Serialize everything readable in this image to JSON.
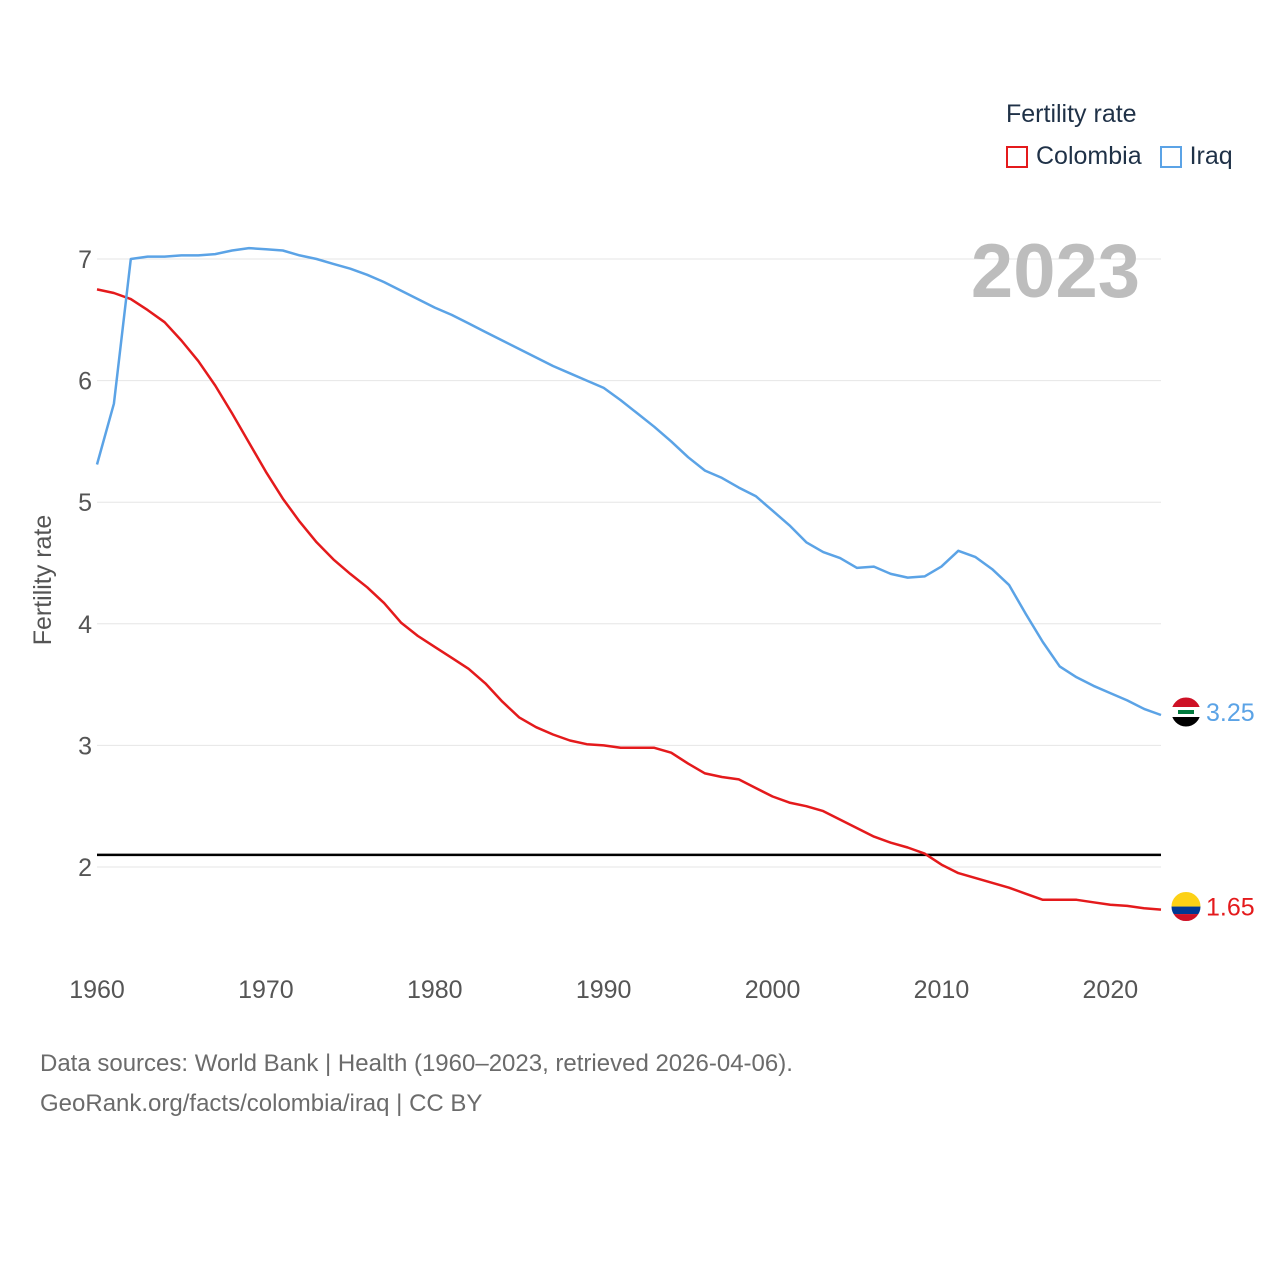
{
  "legend": {
    "title": "Fertility rate"
  },
  "year_label": "2023",
  "footer": {
    "line1": "Data sources: World Bank | Health (1960–2023, retrieved 2026-04-06).",
    "line2": "GeoRank.org/facts/colombia/iraq | CC BY"
  },
  "chart_data": {
    "type": "line",
    "title": "Fertility rate",
    "xlabel": "",
    "ylabel": "Fertility rate",
    "xlim": [
      1960,
      2023
    ],
    "ylim": [
      1.3,
      7.2
    ],
    "x_ticks": [
      "1960",
      "1970",
      "1980",
      "1990",
      "2000",
      "2010",
      "2020"
    ],
    "y_ticks": [
      "2",
      "3",
      "4",
      "5",
      "6",
      "7"
    ],
    "reference_line": {
      "value": 2.1,
      "color": "#000000"
    },
    "x": [
      1960,
      1961,
      1962,
      1963,
      1964,
      1965,
      1966,
      1967,
      1968,
      1969,
      1970,
      1971,
      1972,
      1973,
      1974,
      1975,
      1976,
      1977,
      1978,
      1979,
      1980,
      1981,
      1982,
      1983,
      1984,
      1985,
      1986,
      1987,
      1988,
      1989,
      1990,
      1991,
      1992,
      1993,
      1994,
      1995,
      1996,
      1997,
      1998,
      1999,
      2000,
      2001,
      2002,
      2003,
      2004,
      2005,
      2006,
      2007,
      2008,
      2009,
      2010,
      2011,
      2012,
      2013,
      2014,
      2015,
      2016,
      2017,
      2018,
      2019,
      2020,
      2021,
      2022,
      2023
    ],
    "series": [
      {
        "name": "Colombia",
        "color": "#e41a1c",
        "end_label": "1.65",
        "flag": "colombia-flag",
        "values": [
          6.75,
          6.72,
          6.67,
          6.58,
          6.48,
          6.33,
          6.16,
          5.96,
          5.73,
          5.49,
          5.25,
          5.03,
          4.84,
          4.67,
          4.53,
          4.41,
          4.3,
          4.17,
          4.01,
          3.9,
          3.81,
          3.72,
          3.63,
          3.51,
          3.36,
          3.23,
          3.15,
          3.09,
          3.04,
          3.01,
          3.0,
          2.98,
          2.98,
          2.98,
          2.94,
          2.85,
          2.77,
          2.74,
          2.72,
          2.65,
          2.58,
          2.53,
          2.5,
          2.46,
          2.39,
          2.32,
          2.25,
          2.2,
          2.16,
          2.11,
          2.02,
          1.95,
          1.91,
          1.87,
          1.83,
          1.78,
          1.73,
          1.73,
          1.73,
          1.71,
          1.69,
          1.68,
          1.66,
          1.65
        ]
      },
      {
        "name": "Iraq",
        "color": "#5ba3e6",
        "end_label": "3.25",
        "flag": "iraq-flag",
        "values": [
          5.31,
          5.81,
          7.0,
          7.02,
          7.02,
          7.03,
          7.03,
          7.04,
          7.07,
          7.09,
          7.08,
          7.07,
          7.03,
          7.0,
          6.96,
          6.92,
          6.87,
          6.81,
          6.74,
          6.67,
          6.6,
          6.54,
          6.47,
          6.4,
          6.33,
          6.26,
          6.19,
          6.12,
          6.06,
          6.0,
          5.94,
          5.84,
          5.73,
          5.62,
          5.5,
          5.37,
          5.26,
          5.2,
          5.12,
          5.05,
          4.93,
          4.81,
          4.67,
          4.59,
          4.54,
          4.46,
          4.47,
          4.41,
          4.38,
          4.39,
          4.47,
          4.6,
          4.55,
          4.45,
          4.32,
          4.08,
          3.85,
          3.65,
          3.56,
          3.49,
          3.43,
          3.37,
          3.3,
          3.25
        ]
      }
    ]
  }
}
